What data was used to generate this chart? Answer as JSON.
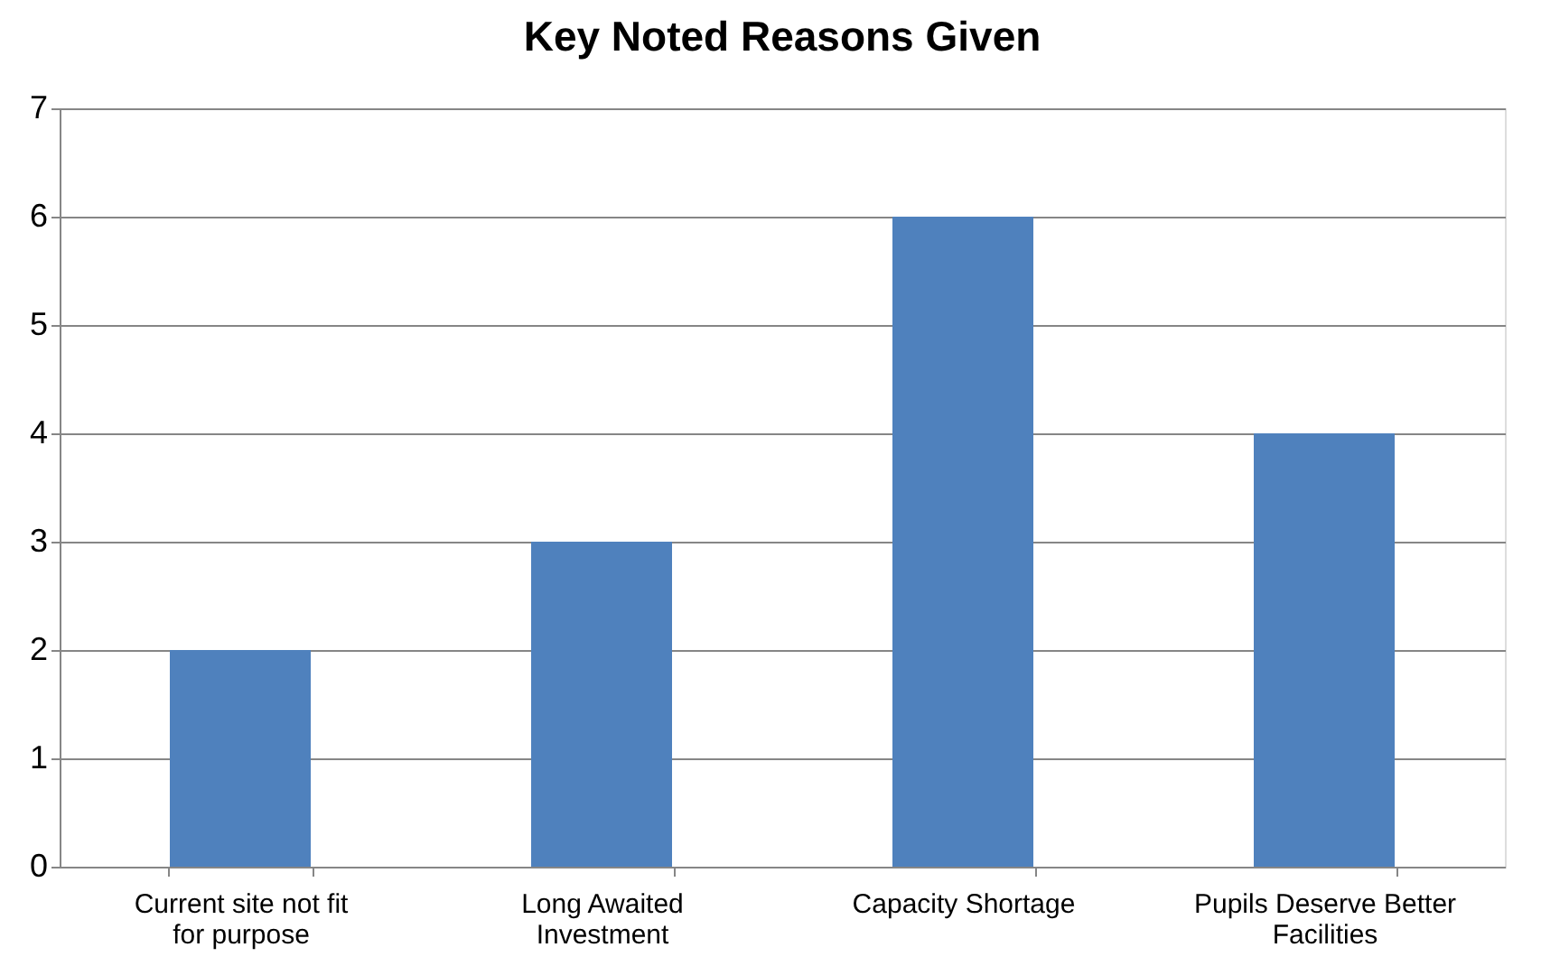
{
  "chart_data": {
    "type": "bar",
    "title": "Key Noted Reasons Given",
    "categories": [
      "Current site not fit for purpose",
      "Long Awaited Investment",
      "Capacity Shortage",
      "Pupils Deserve Better Facilities"
    ],
    "values": [
      2,
      3,
      6,
      4
    ],
    "color": "#4f81bd",
    "ylim": [
      0,
      7
    ],
    "yticks": [
      0,
      1,
      2,
      3,
      4,
      5,
      6,
      7
    ],
    "grid": "y"
  }
}
